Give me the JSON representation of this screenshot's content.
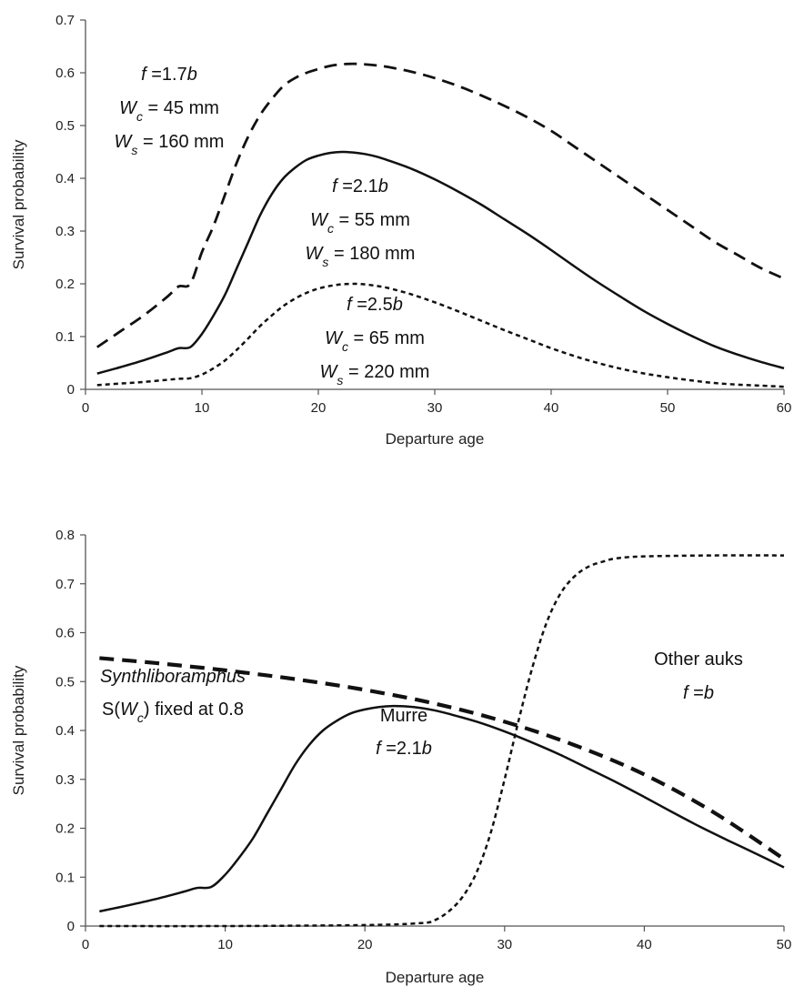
{
  "chart_data": [
    {
      "type": "line",
      "xlabel": "Departure age",
      "ylabel": "Survival probability",
      "xlim": [
        0,
        60
      ],
      "ylim": [
        0,
        0.7
      ],
      "xticks": [
        "0",
        "10",
        "20",
        "30",
        "40",
        "50",
        "60"
      ],
      "yticks": [
        "0",
        "0.1",
        "0.2",
        "0.3",
        "0.4",
        "0.5",
        "0.6",
        "0.7"
      ],
      "grid": false,
      "series": [
        {
          "style": "long-dash",
          "annotation": [
            [
              {
                "t": "f",
                "i": true
              },
              {
                "t": " =1.7"
              },
              {
                "t": "b",
                "i": true
              }
            ],
            [
              {
                "t": "W",
                "i": true
              },
              {
                "t": "c",
                "i": true,
                "sub": true
              },
              {
                "t": " = 45 mm"
              }
            ],
            [
              {
                "t": "W",
                "i": true
              },
              {
                "t": "s",
                "i": true,
                "sub": true
              },
              {
                "t": " = 160 mm"
              }
            ]
          ],
          "x": [
            1,
            3,
            5,
            7,
            8,
            9,
            10,
            11,
            12,
            13,
            14,
            15,
            16,
            17,
            18,
            19,
            20,
            21,
            22,
            23,
            24,
            25,
            26,
            28,
            30,
            32,
            34,
            36,
            38,
            40,
            42,
            44,
            46,
            48,
            50,
            52,
            54,
            56,
            58,
            60
          ],
          "y": [
            0.08,
            0.11,
            0.14,
            0.175,
            0.195,
            0.2,
            0.26,
            0.31,
            0.37,
            0.43,
            0.48,
            0.52,
            0.55,
            0.575,
            0.59,
            0.6,
            0.607,
            0.613,
            0.616,
            0.617,
            0.616,
            0.614,
            0.611,
            0.602,
            0.59,
            0.575,
            0.557,
            0.537,
            0.515,
            0.49,
            0.46,
            0.43,
            0.4,
            0.37,
            0.34,
            0.31,
            0.28,
            0.255,
            0.23,
            0.21
          ]
        },
        {
          "style": "solid",
          "annotation": [
            [
              {
                "t": "f",
                "i": true
              },
              {
                "t": " =2.1"
              },
              {
                "t": "b",
                "i": true
              }
            ],
            [
              {
                "t": "W",
                "i": true
              },
              {
                "t": "c",
                "i": true,
                "sub": true
              },
              {
                "t": " = 55 mm"
              }
            ],
            [
              {
                "t": "W",
                "i": true
              },
              {
                "t": "s",
                "i": true,
                "sub": true
              },
              {
                "t": " = 180 mm"
              }
            ]
          ],
          "x": [
            1,
            3,
            5,
            7,
            8,
            9,
            10,
            11,
            12,
            13,
            14,
            15,
            16,
            17,
            18,
            19,
            20,
            21,
            22,
            23,
            24,
            25,
            26,
            28,
            30,
            32,
            34,
            36,
            38,
            40,
            42,
            44,
            46,
            48,
            50,
            52,
            54,
            56,
            58,
            60
          ],
          "y": [
            0.03,
            0.042,
            0.055,
            0.07,
            0.078,
            0.08,
            0.105,
            0.14,
            0.18,
            0.23,
            0.28,
            0.33,
            0.37,
            0.4,
            0.42,
            0.435,
            0.443,
            0.448,
            0.45,
            0.449,
            0.446,
            0.441,
            0.434,
            0.418,
            0.398,
            0.375,
            0.35,
            0.322,
            0.294,
            0.264,
            0.233,
            0.203,
            0.175,
            0.148,
            0.124,
            0.102,
            0.082,
            0.066,
            0.052,
            0.04
          ]
        },
        {
          "style": "short-dash",
          "annotation": [
            [
              {
                "t": "f",
                "i": true
              },
              {
                "t": " =2.5"
              },
              {
                "t": "b",
                "i": true
              }
            ],
            [
              {
                "t": "W",
                "i": true
              },
              {
                "t": "c",
                "i": true,
                "sub": true
              },
              {
                "t": " = 65  mm"
              }
            ],
            [
              {
                "t": "W",
                "i": true
              },
              {
                "t": "s",
                "i": true,
                "sub": true
              },
              {
                "t": " = 220 mm"
              }
            ]
          ],
          "x": [
            1,
            3,
            5,
            7,
            8,
            9,
            10,
            11,
            12,
            13,
            14,
            15,
            16,
            17,
            18,
            19,
            20,
            21,
            22,
            23,
            24,
            25,
            26,
            28,
            30,
            32,
            34,
            36,
            38,
            40,
            42,
            44,
            46,
            48,
            50,
            52,
            54,
            56,
            58,
            60
          ],
          "y": [
            0.008,
            0.011,
            0.014,
            0.018,
            0.02,
            0.021,
            0.028,
            0.04,
            0.055,
            0.075,
            0.097,
            0.12,
            0.14,
            0.158,
            0.172,
            0.183,
            0.191,
            0.196,
            0.199,
            0.2,
            0.199,
            0.196,
            0.192,
            0.18,
            0.165,
            0.148,
            0.13,
            0.112,
            0.095,
            0.078,
            0.063,
            0.05,
            0.039,
            0.03,
            0.023,
            0.017,
            0.012,
            0.009,
            0.007,
            0.005
          ]
        }
      ]
    },
    {
      "type": "line",
      "xlabel": "Departure age",
      "ylabel": "Survival probability",
      "xlim": [
        0,
        50
      ],
      "ylim": [
        0,
        0.8
      ],
      "xticks": [
        "0",
        "10",
        "20",
        "30",
        "40",
        "50"
      ],
      "yticks": [
        "0",
        "0.1",
        "0.2",
        "0.3",
        "0.4",
        "0.5",
        "0.6",
        "0.7",
        "0.8"
      ],
      "grid": false,
      "series": [
        {
          "style": "thick-dash",
          "annotation": [
            [
              {
                "t": "Synthliboramphus",
                "i": true
              }
            ],
            [
              {
                "t": "S("
              },
              {
                "t": "W",
                "i": true
              },
              {
                "t": "c",
                "i": true,
                "sub": true
              },
              {
                "t": ") fixed at 0.8"
              }
            ]
          ],
          "x": [
            1,
            5,
            10,
            15,
            20,
            25,
            30,
            35,
            40,
            45,
            50
          ],
          "y": [
            0.548,
            0.538,
            0.523,
            0.505,
            0.483,
            0.455,
            0.418,
            0.37,
            0.31,
            0.232,
            0.137
          ]
        },
        {
          "style": "solid",
          "annotation": [
            [
              {
                "t": "Murre"
              }
            ],
            [
              {
                "t": "f",
                "i": true
              },
              {
                "t": " =2.1"
              },
              {
                "t": "b",
                "i": true
              }
            ]
          ],
          "x": [
            1,
            3,
            5,
            7,
            8,
            9,
            10,
            11,
            12,
            13,
            14,
            15,
            16,
            17,
            18,
            19,
            20,
            21,
            22,
            23,
            24,
            25,
            26,
            28,
            30,
            32,
            34,
            36,
            38,
            40,
            42,
            44,
            46,
            48,
            50
          ],
          "y": [
            0.03,
            0.042,
            0.055,
            0.07,
            0.078,
            0.08,
            0.105,
            0.14,
            0.18,
            0.23,
            0.28,
            0.33,
            0.37,
            0.4,
            0.42,
            0.435,
            0.443,
            0.448,
            0.45,
            0.449,
            0.446,
            0.441,
            0.434,
            0.418,
            0.398,
            0.375,
            0.35,
            0.322,
            0.294,
            0.264,
            0.233,
            0.203,
            0.175,
            0.148,
            0.12
          ]
        },
        {
          "style": "short-dash",
          "annotation": [
            [
              {
                "t": "Other auks"
              }
            ],
            [
              {
                "t": "f",
                "i": true
              },
              {
                "t": " ="
              },
              {
                "t": "b",
                "i": true
              }
            ]
          ],
          "x": [
            1,
            10,
            20,
            24,
            25,
            26,
            27,
            28,
            29,
            30,
            31,
            32,
            33,
            34,
            35,
            36,
            37,
            38,
            40,
            45,
            50
          ],
          "y": [
            0.0,
            0.0,
            0.002,
            0.006,
            0.012,
            0.03,
            0.06,
            0.11,
            0.19,
            0.3,
            0.42,
            0.53,
            0.62,
            0.68,
            0.715,
            0.735,
            0.745,
            0.752,
            0.756,
            0.758,
            0.758
          ]
        }
      ]
    }
  ]
}
